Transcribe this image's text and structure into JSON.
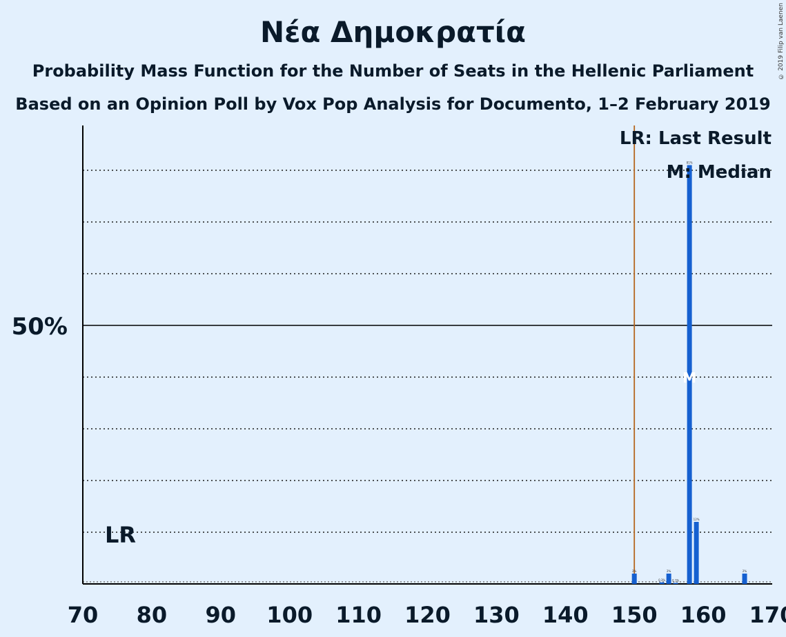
{
  "header": {
    "title": "Νέα Δημοκρατία",
    "subtitle": "Probability Mass Function for the Number of Seats in the Hellenic Parliament",
    "source": "Based on an Opinion Poll by Vox Pop Analysis for Documento, 1–2 February 2019",
    "copyright": "© 2019 Filip van Laenen"
  },
  "colors": {
    "bar": "#1560d0",
    "last_result_line": "#b5651d",
    "background": "#e3f0fd",
    "text": "#0a1a2a"
  },
  "chart_data": {
    "type": "bar",
    "xlim": [
      70,
      170
    ],
    "ylim": [
      0,
      0.88
    ],
    "x_ticks": [
      70,
      80,
      90,
      100,
      110,
      120,
      130,
      140,
      150,
      160,
      170
    ],
    "y_tick_label": "50%",
    "y_tick_value": 0.5,
    "grid": "dotted every 10%",
    "legend": {
      "position": "top-right",
      "last_result": "LR: Last Result",
      "median": "M: Median"
    },
    "last_result": {
      "seats": 150,
      "label": "LR"
    },
    "median": {
      "seats": 158,
      "label": "M"
    },
    "bars": [
      {
        "seats": 150,
        "value": 0.02,
        "label": "2%"
      },
      {
        "seats": 154,
        "value": 0.003,
        "label": "0.3%"
      },
      {
        "seats": 155,
        "value": 0.02,
        "label": "2%"
      },
      {
        "seats": 156,
        "value": 0.001,
        "label": "0.1%"
      },
      {
        "seats": 158,
        "value": 0.81,
        "label": "81%"
      },
      {
        "seats": 159,
        "value": 0.12,
        "label": "12%"
      },
      {
        "seats": 166,
        "value": 0.02,
        "label": "2%"
      }
    ]
  }
}
